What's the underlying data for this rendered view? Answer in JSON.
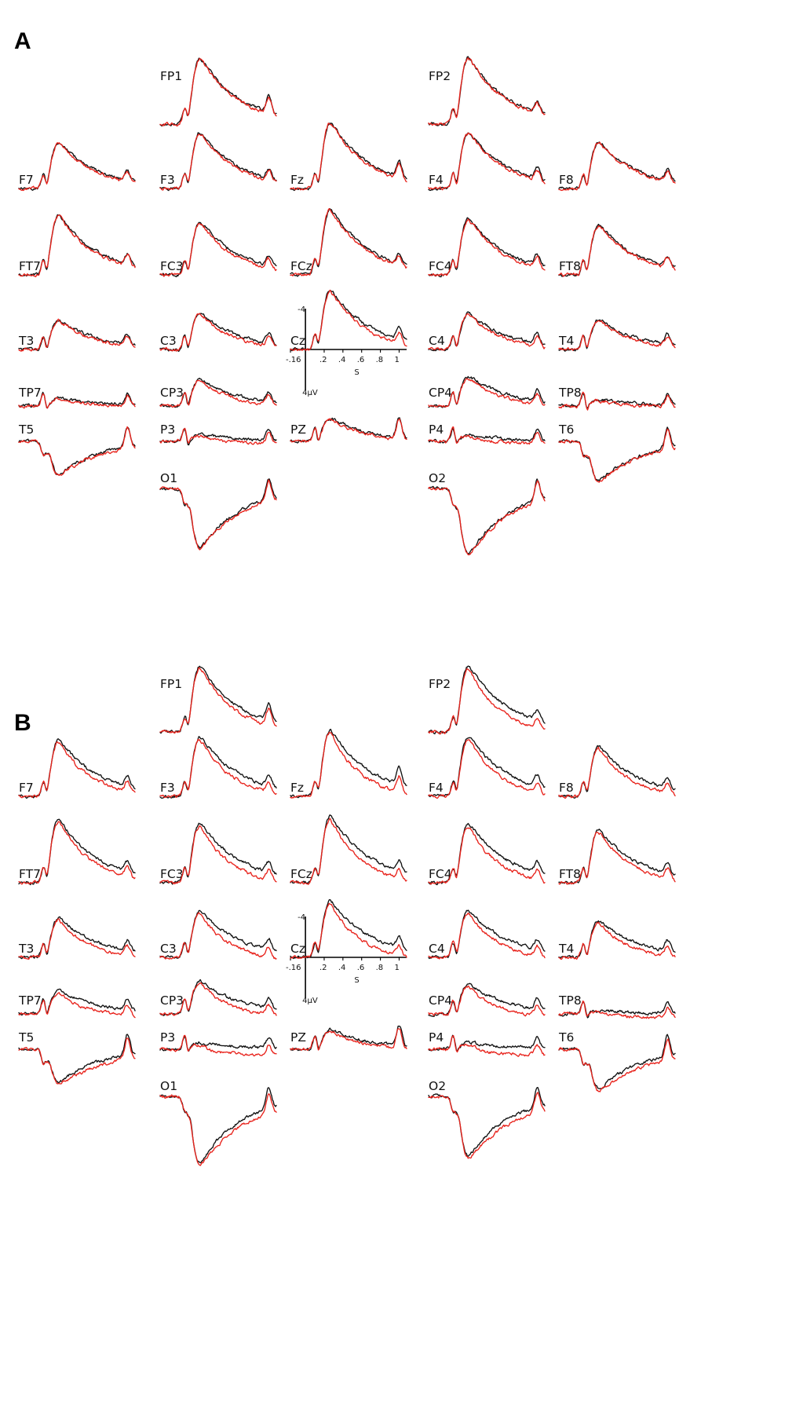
{
  "colors": {
    "series_black": "#111111",
    "series_red": "#e8231c"
  },
  "chart_data": [
    {
      "type": "line",
      "panel_label": "A",
      "x_range_s": [
        -0.16,
        1.08
      ],
      "y_range_uV": [
        4,
        -4
      ],
      "axis": {
        "ytop": "-4",
        "ybottom": "4µV",
        "xlabel": "S",
        "xticks": [
          "-.16",
          ".2",
          ".4",
          ".6",
          ".8",
          "1"
        ]
      },
      "series": [
        {
          "color": "#111111"
        },
        {
          "color": "#e8231c"
        }
      ],
      "channels": [
        {
          "label": "FP1",
          "col": 1,
          "row": 0,
          "peak": 1.0,
          "late": 0.08,
          "red_diff": 0.02
        },
        {
          "label": "FP2",
          "col": 3,
          "row": 0,
          "peak": 1.0,
          "late": 0.05,
          "red_diff": 0.02
        },
        {
          "label": "F7",
          "col": 0,
          "row": 1,
          "peak": 0.7,
          "late": 0.05,
          "red_diff": 0.02
        },
        {
          "label": "F3",
          "col": 1,
          "row": 1,
          "peak": 0.85,
          "late": 0.05,
          "red_diff": 0.03
        },
        {
          "label": "Fz",
          "col": 2,
          "row": 1,
          "peak": 1.0,
          "late": 0.08,
          "red_diff": 0.03
        },
        {
          "label": "F4",
          "col": 3,
          "row": 1,
          "peak": 0.85,
          "late": 0.05,
          "red_diff": 0.03
        },
        {
          "label": "F8",
          "col": 4,
          "row": 1,
          "peak": 0.7,
          "late": 0.05,
          "red_diff": 0.02
        },
        {
          "label": "FT7",
          "col": 0,
          "row": 2,
          "peak": 0.9,
          "late": 0.05,
          "red_diff": 0.02
        },
        {
          "label": "FC3",
          "col": 1,
          "row": 2,
          "peak": 0.8,
          "late": 0.05,
          "red_diff": 0.04
        },
        {
          "label": "FCz",
          "col": 2,
          "row": 2,
          "peak": 1.0,
          "late": 0.05,
          "red_diff": 0.04
        },
        {
          "label": "FC4",
          "col": 3,
          "row": 2,
          "peak": 0.85,
          "late": 0.05,
          "red_diff": 0.04
        },
        {
          "label": "FT8",
          "col": 4,
          "row": 2,
          "peak": 0.75,
          "late": 0.05,
          "red_diff": 0.02
        },
        {
          "label": "T3",
          "col": 0,
          "row": 3,
          "peak": 0.45,
          "late": 0.05,
          "red_diff": 0.03
        },
        {
          "label": "C3",
          "col": 1,
          "row": 3,
          "peak": 0.55,
          "late": 0.05,
          "red_diff": 0.05
        },
        {
          "label": "Cz",
          "col": 2,
          "row": 3,
          "peak": 0.9,
          "late": 0.05,
          "red_diff": 0.06,
          "axis": true
        },
        {
          "label": "C4",
          "col": 3,
          "row": 3,
          "peak": 0.55,
          "late": 0.05,
          "red_diff": 0.05
        },
        {
          "label": "T4",
          "col": 4,
          "row": 3,
          "peak": 0.45,
          "late": 0.05,
          "red_diff": 0.03
        },
        {
          "label": "TP7",
          "col": 0,
          "row": 4,
          "peak": 0.12,
          "late": 0.05,
          "red_diff": 0.02
        },
        {
          "label": "CP3",
          "col": 1,
          "row": 4,
          "peak": 0.4,
          "late": 0.05,
          "red_diff": 0.05
        },
        {
          "label": "CP4",
          "col": 3,
          "row": 4,
          "peak": 0.45,
          "late": 0.05,
          "red_diff": 0.05
        },
        {
          "label": "TP8",
          "col": 4,
          "row": 4,
          "peak": 0.1,
          "late": 0.05,
          "red_diff": 0.03
        },
        {
          "label": "T5",
          "col": 0,
          "row": 5,
          "peak": -0.5,
          "late": 0.1,
          "red_diff": 0.02
        },
        {
          "label": "P3",
          "col": 1,
          "row": 5,
          "peak": 0.1,
          "late": 0.05,
          "red_diff": 0.05
        },
        {
          "label": "PZ",
          "col": 2,
          "row": 5,
          "peak": 0.35,
          "late": 0.1,
          "red_diff": 0.03
        },
        {
          "label": "P4",
          "col": 3,
          "row": 5,
          "peak": 0.1,
          "late": 0.05,
          "red_diff": 0.05
        },
        {
          "label": "T6",
          "col": 4,
          "row": 5,
          "peak": -0.6,
          "late": 0.1,
          "red_diff": 0.02
        },
        {
          "label": "O1",
          "col": 1,
          "row": 6,
          "peak": -0.9,
          "late": 0.1,
          "red_diff": 0.03
        },
        {
          "label": "O2",
          "col": 3,
          "row": 6,
          "peak": -1.0,
          "late": 0.1,
          "red_diff": 0.03
        }
      ]
    },
    {
      "type": "line",
      "panel_label": "B",
      "x_range_s": [
        -0.16,
        1.08
      ],
      "y_range_uV": [
        4,
        -4
      ],
      "axis": {
        "ytop": "-4",
        "ybottom": "4µV",
        "xlabel": "S",
        "xticks": [
          "-.16",
          ".2",
          ".4",
          ".6",
          ".8",
          "1"
        ]
      },
      "series": [
        {
          "color": "#111111"
        },
        {
          "color": "#e8231c"
        }
      ],
      "channels": [
        {
          "label": "FP1",
          "col": 1,
          "row": 0,
          "peak": 1.0,
          "late": 0.08,
          "red_diff": 0.08
        },
        {
          "label": "FP2",
          "col": 3,
          "row": 0,
          "peak": 1.0,
          "late": 0.05,
          "red_diff": 0.12
        },
        {
          "label": "F7",
          "col": 0,
          "row": 1,
          "peak": 0.85,
          "late": 0.05,
          "red_diff": 0.08
        },
        {
          "label": "F3",
          "col": 1,
          "row": 1,
          "peak": 0.9,
          "late": 0.05,
          "red_diff": 0.1
        },
        {
          "label": "Fz",
          "col": 2,
          "row": 1,
          "peak": 1.0,
          "late": 0.08,
          "red_diff": 0.12
        },
        {
          "label": "F4",
          "col": 3,
          "row": 1,
          "peak": 0.9,
          "late": 0.05,
          "red_diff": 0.1
        },
        {
          "label": "F8",
          "col": 4,
          "row": 1,
          "peak": 0.75,
          "late": 0.05,
          "red_diff": 0.08
        },
        {
          "label": "FT7",
          "col": 0,
          "row": 2,
          "peak": 0.95,
          "late": 0.05,
          "red_diff": 0.08
        },
        {
          "label": "FC3",
          "col": 1,
          "row": 2,
          "peak": 0.9,
          "late": 0.05,
          "red_diff": 0.12
        },
        {
          "label": "FCz",
          "col": 2,
          "row": 2,
          "peak": 1.0,
          "late": 0.05,
          "red_diff": 0.12
        },
        {
          "label": "FC4",
          "col": 3,
          "row": 2,
          "peak": 0.9,
          "late": 0.05,
          "red_diff": 0.12
        },
        {
          "label": "FT8",
          "col": 4,
          "row": 2,
          "peak": 0.8,
          "late": 0.05,
          "red_diff": 0.08
        },
        {
          "label": "T3",
          "col": 0,
          "row": 3,
          "peak": 0.6,
          "late": 0.05,
          "red_diff": 0.08
        },
        {
          "label": "C3",
          "col": 1,
          "row": 3,
          "peak": 0.7,
          "late": 0.05,
          "red_diff": 0.12
        },
        {
          "label": "Cz",
          "col": 2,
          "row": 3,
          "peak": 0.85,
          "late": 0.05,
          "red_diff": 0.12,
          "axis": true
        },
        {
          "label": "C4",
          "col": 3,
          "row": 3,
          "peak": 0.7,
          "late": 0.05,
          "red_diff": 0.1
        },
        {
          "label": "T4",
          "col": 4,
          "row": 3,
          "peak": 0.55,
          "late": 0.05,
          "red_diff": 0.08
        },
        {
          "label": "TP7",
          "col": 0,
          "row": 4,
          "peak": 0.35,
          "late": 0.05,
          "red_diff": 0.08
        },
        {
          "label": "CP3",
          "col": 1,
          "row": 4,
          "peak": 0.5,
          "late": 0.05,
          "red_diff": 0.1
        },
        {
          "label": "CP4",
          "col": 3,
          "row": 4,
          "peak": 0.45,
          "late": 0.05,
          "red_diff": 0.1
        },
        {
          "label": "TP8",
          "col": 4,
          "row": 4,
          "peak": 0.05,
          "late": 0.05,
          "red_diff": 0.06
        },
        {
          "label": "T5",
          "col": 0,
          "row": 5,
          "peak": -0.5,
          "late": 0.1,
          "red_diff": 0.06
        },
        {
          "label": "P3",
          "col": 1,
          "row": 5,
          "peak": 0.1,
          "late": 0.05,
          "red_diff": 0.1
        },
        {
          "label": "PZ",
          "col": 2,
          "row": 5,
          "peak": 0.3,
          "late": 0.1,
          "red_diff": 0.04
        },
        {
          "label": "P4",
          "col": 3,
          "row": 5,
          "peak": 0.1,
          "late": 0.05,
          "red_diff": 0.1
        },
        {
          "label": "T6",
          "col": 4,
          "row": 5,
          "peak": -0.6,
          "late": 0.1,
          "red_diff": 0.06
        },
        {
          "label": "O1",
          "col": 1,
          "row": 6,
          "peak": -1.0,
          "late": 0.1,
          "red_diff": 0.08
        },
        {
          "label": "O2",
          "col": 3,
          "row": 6,
          "peak": -0.9,
          "late": 0.1,
          "red_diff": 0.08
        }
      ]
    }
  ]
}
